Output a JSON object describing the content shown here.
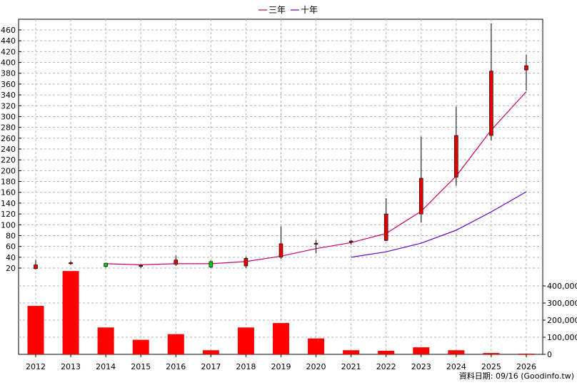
{
  "chart_data": {
    "type": "candlestick_with_volume",
    "categories": [
      "2012",
      "2013",
      "2014",
      "2015",
      "2016",
      "2017",
      "2018",
      "2019",
      "2020",
      "2021",
      "2022",
      "2023",
      "2024",
      "2025",
      "2026"
    ],
    "candles": [
      {
        "open": 19,
        "high": 35,
        "low": 17,
        "close": 26,
        "color": "red"
      },
      {
        "open": 29,
        "high": 33,
        "low": 26,
        "close": 30,
        "color": "red"
      },
      {
        "open": 29,
        "high": 30,
        "low": 21,
        "close": 23,
        "color": "green"
      },
      {
        "open": 25,
        "high": 26,
        "low": 20,
        "close": 24,
        "color": "red"
      },
      {
        "open": 27,
        "high": 43,
        "low": 24,
        "close": 35,
        "color": "red"
      },
      {
        "open": 32,
        "high": 34,
        "low": 20,
        "close": 22,
        "color": "green"
      },
      {
        "open": 24,
        "high": 41,
        "low": 20,
        "close": 38,
        "color": "red"
      },
      {
        "open": 40,
        "high": 97,
        "low": 37,
        "close": 65,
        "color": "red"
      },
      {
        "open": 65,
        "high": 72,
        "low": 47,
        "close": 66,
        "color": "red"
      },
      {
        "open": 68,
        "high": 72,
        "low": 63,
        "close": 70,
        "color": "red"
      },
      {
        "open": 71,
        "high": 149,
        "low": 70,
        "close": 120,
        "color": "red"
      },
      {
        "open": 120,
        "high": 263,
        "low": 104,
        "close": 186,
        "color": "red"
      },
      {
        "open": 188,
        "high": 318,
        "low": 172,
        "close": 265,
        "color": "red"
      },
      {
        "open": 265,
        "high": 472,
        "low": 256,
        "close": 384,
        "color": "red"
      },
      {
        "open": 386,
        "high": 414,
        "low": 348,
        "close": 394,
        "color": "red"
      }
    ],
    "series": [
      {
        "name": "三年",
        "color": "#cc0066",
        "values": [
          null,
          null,
          28,
          26,
          28,
          28,
          32,
          42,
          56,
          67,
          84,
          125,
          190,
          275,
          346
        ]
      },
      {
        "name": "十年",
        "color": "#6600cc",
        "values": [
          null,
          null,
          null,
          null,
          null,
          null,
          null,
          null,
          null,
          40,
          50,
          66,
          90,
          124,
          161
        ]
      }
    ],
    "volume": [
      283000,
      487000,
      157000,
      85000,
      118000,
      24000,
      157000,
      183000,
      93000,
      24000,
      21000,
      41000,
      24000,
      8000,
      4000
    ],
    "price_axis": {
      "min": 20,
      "max": 460,
      "step": 20,
      "ticks": [
        "20",
        "40",
        "60",
        "80",
        "100",
        "120",
        "140",
        "160",
        "180",
        "200",
        "220",
        "240",
        "260",
        "280",
        "300",
        "320",
        "340",
        "360",
        "380",
        "400",
        "420",
        "440",
        "460"
      ]
    },
    "volume_axis": {
      "min": 0,
      "max": 400000,
      "ticks": [
        "0",
        "100,000",
        "200,000",
        "300,000",
        "400,000"
      ]
    },
    "legend_position": "top-center",
    "grid": true,
    "credit": "資料日期: 09/16  (Goodinfo.tw)"
  }
}
